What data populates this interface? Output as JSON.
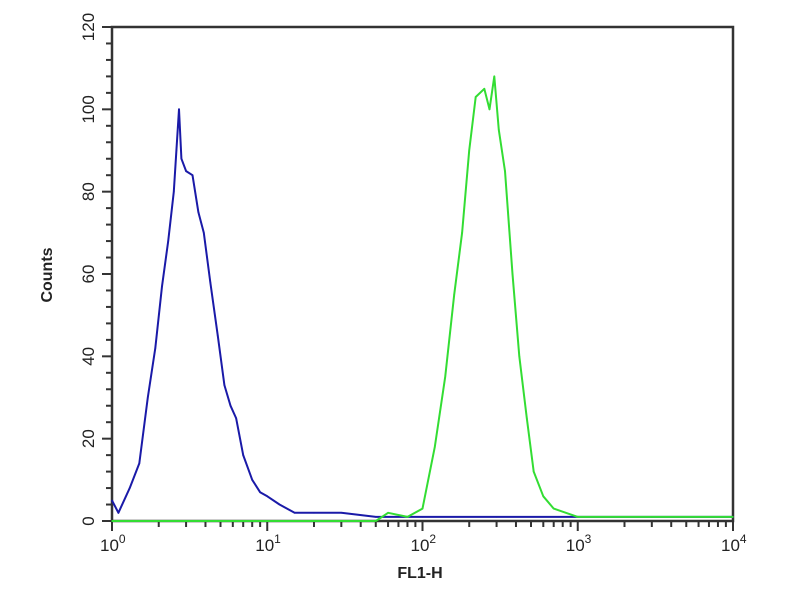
{
  "chart_data": {
    "type": "line",
    "title": "",
    "xlabel": "FL1-H",
    "ylabel": "Counts",
    "xscale": "log",
    "xlim": [
      1,
      10000
    ],
    "ylim": [
      0,
      120
    ],
    "grid": false,
    "x_ticks": [
      {
        "base": "10",
        "exp": "0",
        "value": 1
      },
      {
        "base": "10",
        "exp": "1",
        "value": 10
      },
      {
        "base": "10",
        "exp": "2",
        "value": 100
      },
      {
        "base": "10",
        "exp": "3",
        "value": 1000
      },
      {
        "base": "10",
        "exp": "4",
        "value": 10000
      }
    ],
    "y_ticks": [
      "0",
      "20",
      "40",
      "60",
      "80",
      "100",
      "120"
    ],
    "series": [
      {
        "color": "#1a1aa8",
        "x": [
          1.0,
          1.1,
          1.3,
          1.5,
          1.7,
          1.9,
          2.1,
          2.3,
          2.5,
          2.6,
          2.7,
          2.8,
          3.0,
          3.3,
          3.6,
          3.9,
          4.3,
          4.8,
          5.3,
          5.8,
          6.3,
          7,
          8,
          9,
          10,
          12,
          15,
          20,
          30,
          50,
          100,
          300,
          1000,
          3000,
          10000
        ],
        "y": [
          5,
          2,
          8,
          14,
          30,
          42,
          57,
          68,
          80,
          90,
          100,
          88,
          85,
          84,
          75,
          70,
          58,
          45,
          33,
          28,
          25,
          16,
          10,
          7,
          6,
          4,
          2,
          2,
          2,
          1,
          1,
          1,
          1,
          1,
          1
        ]
      },
      {
        "color": "#33dd33",
        "x": [
          1,
          10,
          50,
          60,
          80,
          100,
          120,
          140,
          160,
          180,
          200,
          220,
          250,
          270,
          290,
          310,
          340,
          380,
          420,
          470,
          520,
          600,
          700,
          1000,
          3000,
          10000
        ],
        "y": [
          0,
          0,
          0,
          2,
          1,
          3,
          18,
          35,
          55,
          70,
          90,
          103,
          105,
          100,
          108,
          95,
          85,
          60,
          40,
          25,
          12,
          6,
          3,
          1,
          1,
          1
        ]
      }
    ]
  }
}
